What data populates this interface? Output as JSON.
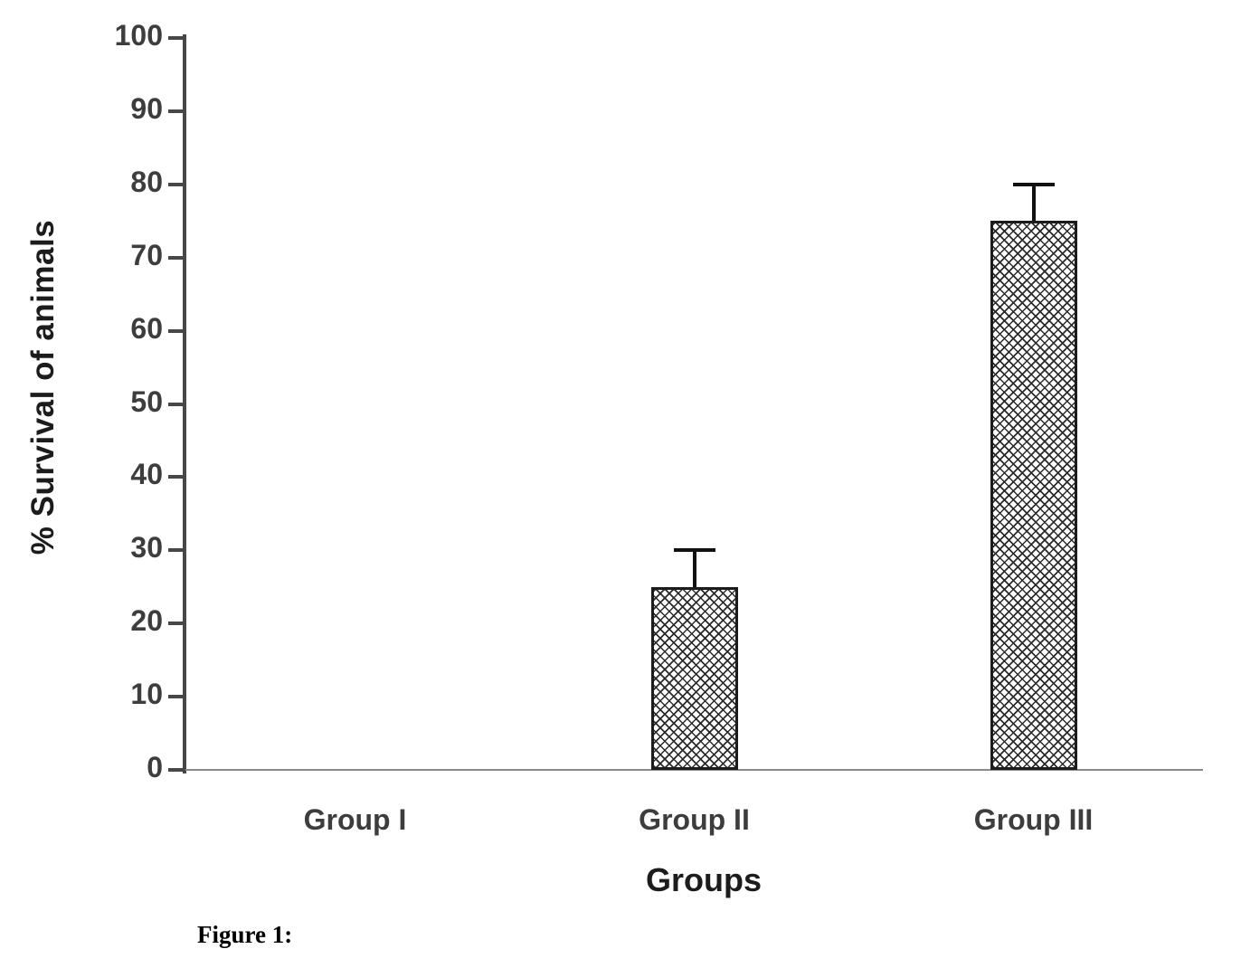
{
  "caption": "Figure 1:",
  "chart_data": {
    "type": "bar",
    "title": "",
    "xlabel": "Groups",
    "ylabel": "% Survival of animals",
    "categories": [
      "Group I",
      "Group II",
      "Group III"
    ],
    "values": [
      0,
      25,
      75
    ],
    "errors": [
      0,
      5,
      5
    ],
    "ylim": [
      0,
      100
    ],
    "ytick_step": 10,
    "grid": false,
    "legend": "none",
    "bar_pattern": "crosshatch",
    "bar_border_color": "#1c1c1c",
    "axis_color": "#474747",
    "x_axis_color": "#8a8a8a",
    "tick_label_color": "#3d3d3d",
    "category_label_color": "#3d3d3d"
  }
}
